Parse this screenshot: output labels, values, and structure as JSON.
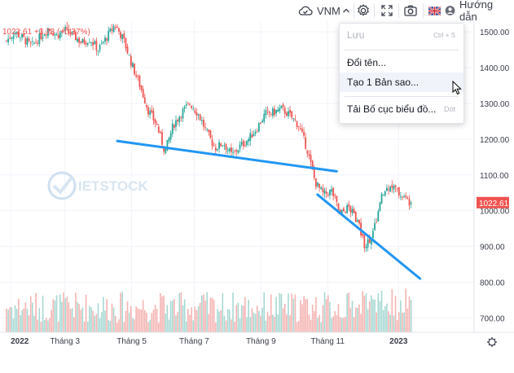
{
  "toolbar": {
    "symbol_label": "VNM",
    "language_label": "Hướng dẫn",
    "icons": [
      "cloud-icon",
      "chevron-up-icon",
      "gear-icon",
      "fullscreen-icon",
      "camera-icon",
      "uk-flag-icon",
      "user-icon"
    ]
  },
  "legend": {
    "last_value": "1022.61",
    "change": "+3.73",
    "change_percent": "(+0.37%)"
  },
  "price_tag": "1022.61",
  "watermark_text": "IETSTOCK",
  "menu": {
    "items": [
      {
        "label": "Lưu",
        "shortcut": "Ctrl + S",
        "disabled": true
      },
      {
        "label": "Đổi tên...",
        "shortcut": ""
      },
      {
        "label": "Tạo 1 Bản sao...",
        "shortcut": "",
        "hovered": true
      },
      {
        "label": "Tải Bố cục biểu đồ...",
        "shortcut": "Dot"
      }
    ]
  },
  "colors": {
    "up": "#26a69a",
    "down": "#ef5350",
    "trendline": "#2196f3",
    "price_tag_bg": "#ef5350",
    "grid": "#f0f3fa"
  },
  "chart_data": {
    "type": "candlestick",
    "y_axis_labels": [
      "1500.00",
      "1400.00",
      "1300.00",
      "1200.00",
      "1100.00",
      "1000.00",
      "900.00",
      "800.00",
      "700.00"
    ],
    "y_axis_values": [
      1500,
      1400,
      1300,
      1200,
      1100,
      1000,
      900,
      800,
      700
    ],
    "x_axis_labels": [
      "2022",
      "Tháng 3",
      "Tháng 5",
      "Tháng 7",
      "Tháng 9",
      "Tháng 11",
      "2023"
    ],
    "ylim": [
      660,
      1530
    ],
    "grid": true,
    "price_path": [
      {
        "x": 0,
        "close": 1475
      },
      {
        "x": 0.02,
        "close": 1500
      },
      {
        "x": 0.04,
        "close": 1482
      },
      {
        "x": 0.06,
        "close": 1460
      },
      {
        "x": 0.08,
        "close": 1485
      },
      {
        "x": 0.1,
        "close": 1510
      },
      {
        "x": 0.12,
        "close": 1490
      },
      {
        "x": 0.14,
        "close": 1505
      },
      {
        "x": 0.16,
        "close": 1490
      },
      {
        "x": 0.18,
        "close": 1470
      },
      {
        "x": 0.2,
        "close": 1480
      },
      {
        "x": 0.22,
        "close": 1450
      },
      {
        "x": 0.24,
        "close": 1485
      },
      {
        "x": 0.26,
        "close": 1520
      },
      {
        "x": 0.28,
        "close": 1480
      },
      {
        "x": 0.3,
        "close": 1410
      },
      {
        "x": 0.32,
        "close": 1350
      },
      {
        "x": 0.34,
        "close": 1280
      },
      {
        "x": 0.36,
        "close": 1240
      },
      {
        "x": 0.38,
        "close": 1165
      },
      {
        "x": 0.4,
        "close": 1240
      },
      {
        "x": 0.42,
        "close": 1275
      },
      {
        "x": 0.44,
        "close": 1300
      },
      {
        "x": 0.46,
        "close": 1270
      },
      {
        "x": 0.48,
        "close": 1220
      },
      {
        "x": 0.5,
        "close": 1175
      },
      {
        "x": 0.52,
        "close": 1190
      },
      {
        "x": 0.54,
        "close": 1155
      },
      {
        "x": 0.56,
        "close": 1180
      },
      {
        "x": 0.58,
        "close": 1200
      },
      {
        "x": 0.6,
        "close": 1230
      },
      {
        "x": 0.62,
        "close": 1270
      },
      {
        "x": 0.64,
        "close": 1275
      },
      {
        "x": 0.66,
        "close": 1285
      },
      {
        "x": 0.68,
        "close": 1265
      },
      {
        "x": 0.7,
        "close": 1240
      },
      {
        "x": 0.72,
        "close": 1175
      },
      {
        "x": 0.74,
        "close": 1080
      },
      {
        "x": 0.76,
        "close": 1045
      },
      {
        "x": 0.78,
        "close": 1055
      },
      {
        "x": 0.8,
        "close": 990
      },
      {
        "x": 0.82,
        "close": 1010
      },
      {
        "x": 0.84,
        "close": 975
      },
      {
        "x": 0.86,
        "close": 900
      },
      {
        "x": 0.88,
        "close": 940
      },
      {
        "x": 0.9,
        "close": 1040
      },
      {
        "x": 0.92,
        "close": 1075
      },
      {
        "x": 0.94,
        "close": 1050
      },
      {
        "x": 0.96,
        "close": 1030
      },
      {
        "x": 0.97,
        "close": 1022.61
      }
    ],
    "trendlines": [
      {
        "x1": 0.0,
        "y1": 1195,
        "x2": 0.44,
        "y2": 1110
      },
      {
        "x1": 0.48,
        "y1": 1045,
        "x2": 0.64,
        "y2": 810
      }
    ]
  }
}
